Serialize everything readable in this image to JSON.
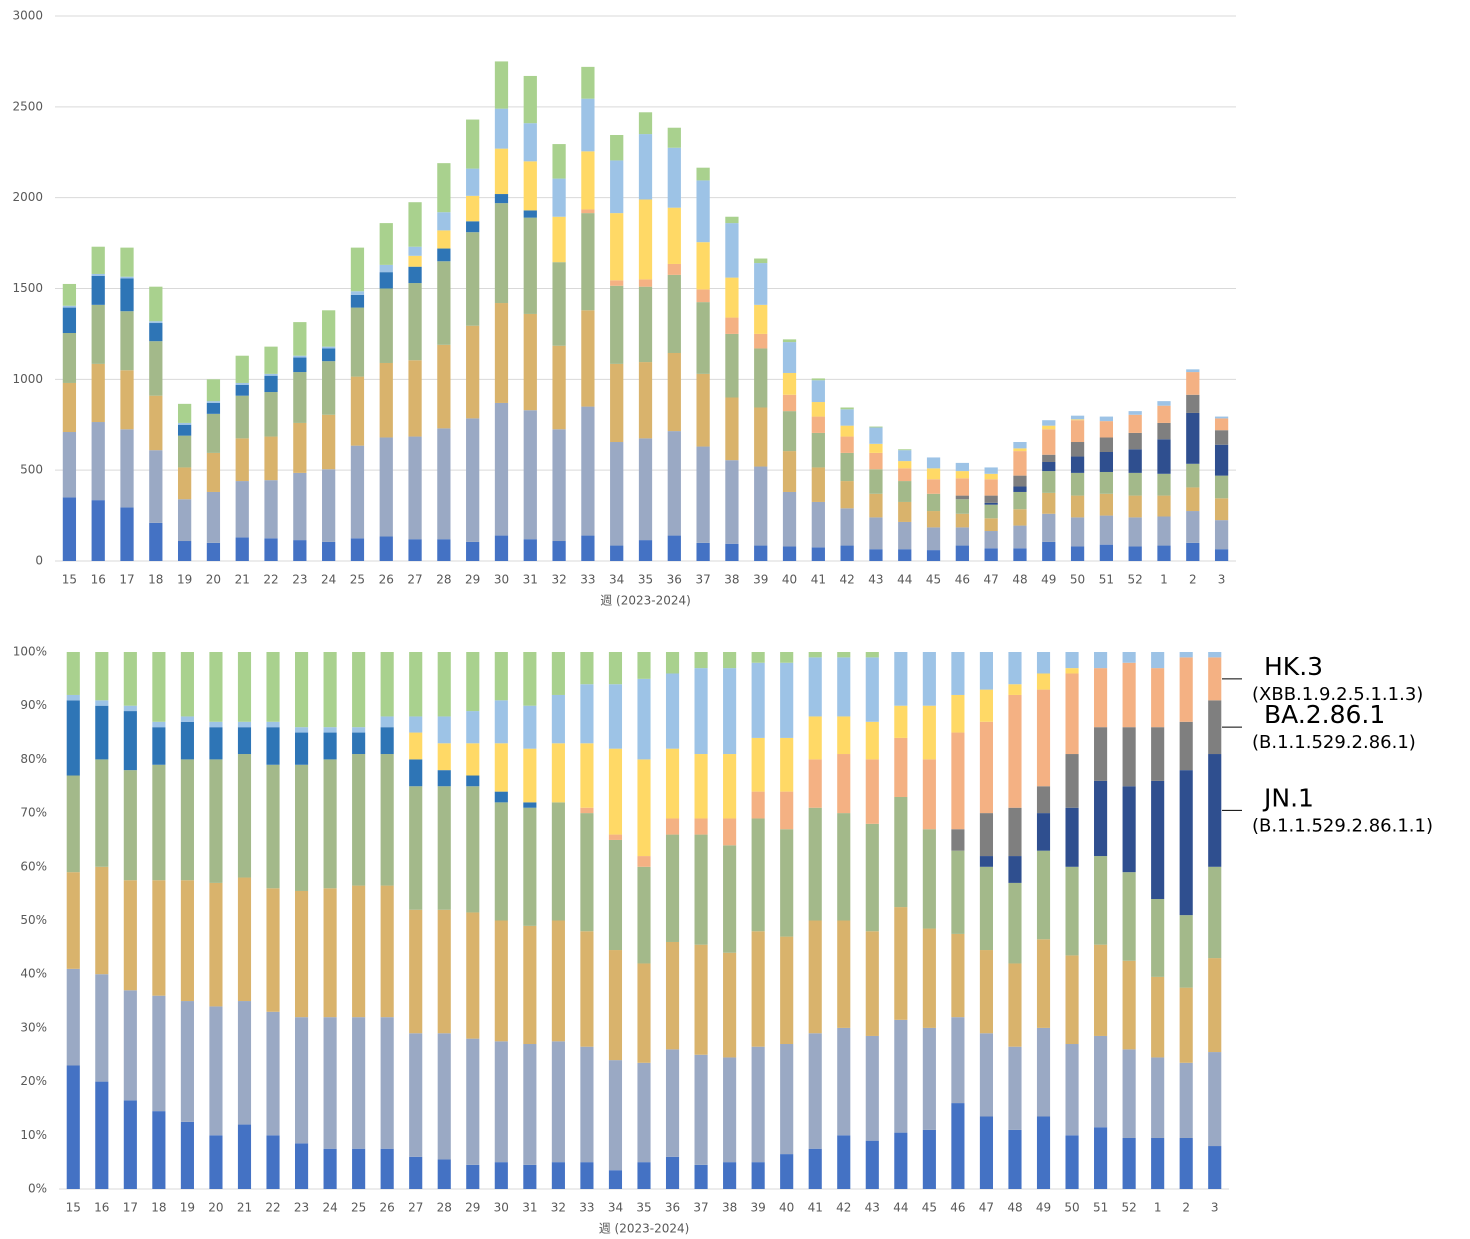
{
  "chart_data": [
    {
      "type": "stacked_bar",
      "x_label": "週 (2023-2024)",
      "grid": true,
      "categories": [
        "15",
        "16",
        "17",
        "18",
        "19",
        "20",
        "21",
        "22",
        "23",
        "24",
        "25",
        "26",
        "27",
        "28",
        "29",
        "30",
        "31",
        "32",
        "33",
        "34",
        "35",
        "36",
        "37",
        "38",
        "39",
        "40",
        "41",
        "42",
        "43",
        "44",
        "45",
        "46",
        "47",
        "48",
        "49",
        "50",
        "51",
        "52",
        "1",
        "2",
        "3"
      ],
      "ylim": [
        0,
        3000
      ],
      "yticks": [
        0,
        500,
        1000,
        1500,
        2000,
        2500,
        3000
      ],
      "series": [
        {
          "color": "#4472c4",
          "values": [
            350,
            335,
            295,
            210,
            110,
            100,
            130,
            125,
            115,
            105,
            125,
            135,
            120,
            120,
            105,
            140,
            120,
            110,
            140,
            85,
            115,
            140,
            100,
            95,
            85,
            80,
            75,
            85,
            65,
            65,
            60,
            85,
            70,
            70,
            105,
            80,
            90,
            80,
            85,
            100,
            65
          ]
        },
        {
          "color": "#9aa9c4",
          "values": [
            360,
            430,
            430,
            400,
            230,
            280,
            310,
            320,
            370,
            400,
            510,
            545,
            565,
            610,
            680,
            730,
            710,
            615,
            710,
            570,
            560,
            575,
            530,
            460,
            435,
            300,
            250,
            205,
            175,
            150,
            125,
            100,
            95,
            125,
            155,
            160,
            160,
            160,
            160,
            175,
            160
          ]
        },
        {
          "color": "#d9b36c",
          "values": [
            270,
            320,
            325,
            300,
            175,
            215,
            235,
            240,
            275,
            300,
            380,
            410,
            420,
            460,
            510,
            550,
            530,
            460,
            530,
            430,
            420,
            430,
            400,
            345,
            325,
            225,
            190,
            150,
            130,
            110,
            90,
            75,
            70,
            90,
            115,
            120,
            120,
            120,
            115,
            130,
            120
          ]
        },
        {
          "color": "#a3b98a",
          "values": [
            275,
            325,
            325,
            300,
            175,
            215,
            235,
            245,
            280,
            295,
            380,
            410,
            425,
            460,
            515,
            550,
            530,
            460,
            535,
            430,
            415,
            430,
            395,
            350,
            325,
            220,
            190,
            155,
            135,
            115,
            95,
            80,
            75,
            95,
            120,
            125,
            120,
            125,
            120,
            130,
            125
          ]
        },
        {
          "color": "#2e75b6",
          "values": [
            140,
            160,
            180,
            100,
            60,
            60,
            60,
            90,
            80,
            70,
            70,
            90,
            90,
            70,
            60,
            50,
            40,
            0,
            0,
            0,
            0,
            0,
            0,
            0,
            0,
            0,
            0,
            0,
            0,
            0,
            0,
            0,
            0,
            0,
            0,
            0,
            0,
            0,
            0,
            0,
            0
          ]
        },
        {
          "color": "#2f4f8f",
          "values": [
            0,
            0,
            0,
            0,
            0,
            0,
            0,
            0,
            0,
            0,
            0,
            0,
            0,
            0,
            0,
            0,
            0,
            0,
            0,
            0,
            0,
            0,
            0,
            0,
            0,
            0,
            0,
            0,
            0,
            0,
            0,
            0,
            10,
            30,
            50,
            90,
            110,
            130,
            190,
            280,
            170
          ]
        },
        {
          "color": "#7f7f7f",
          "values": [
            0,
            0,
            0,
            0,
            0,
            0,
            0,
            0,
            0,
            0,
            0,
            0,
            0,
            0,
            0,
            0,
            0,
            0,
            0,
            0,
            0,
            0,
            0,
            0,
            0,
            0,
            0,
            0,
            0,
            0,
            0,
            20,
            40,
            60,
            40,
            80,
            80,
            90,
            90,
            100,
            80
          ]
        },
        {
          "color": "#f4b183",
          "values": [
            0,
            0,
            0,
            0,
            0,
            0,
            0,
            0,
            0,
            0,
            0,
            0,
            0,
            0,
            0,
            0,
            0,
            0,
            20,
            30,
            40,
            60,
            70,
            90,
            80,
            90,
            90,
            90,
            90,
            70,
            80,
            95,
            90,
            135,
            140,
            120,
            90,
            100,
            95,
            125,
            65
          ]
        },
        {
          "color": "#ffd966",
          "values": [
            0,
            0,
            0,
            0,
            0,
            0,
            0,
            0,
            0,
            0,
            0,
            0,
            60,
            100,
            140,
            250,
            270,
            250,
            320,
            370,
            440,
            310,
            260,
            220,
            160,
            120,
            80,
            60,
            50,
            40,
            60,
            40,
            30,
            15,
            20,
            5,
            0,
            0,
            0,
            0,
            0
          ]
        },
        {
          "color": "#9dc3e6",
          "values": [
            10,
            10,
            10,
            10,
            10,
            10,
            10,
            10,
            10,
            10,
            20,
            40,
            50,
            100,
            150,
            220,
            210,
            210,
            290,
            290,
            360,
            330,
            340,
            300,
            230,
            170,
            120,
            90,
            90,
            60,
            60,
            45,
            35,
            35,
            30,
            20,
            25,
            20,
            25,
            15,
            10
          ]
        },
        {
          "color": "#a9d18e",
          "values": [
            120,
            150,
            160,
            190,
            105,
            120,
            150,
            150,
            185,
            200,
            240,
            230,
            245,
            270,
            270,
            260,
            260,
            190,
            175,
            140,
            120,
            110,
            70,
            35,
            25,
            15,
            10,
            10,
            5,
            5,
            0,
            0,
            0,
            0,
            0,
            0,
            0,
            0,
            0,
            0,
            0
          ]
        }
      ]
    },
    {
      "type": "stacked_bar",
      "x_label": "週 (2023-2024)",
      "grid": false,
      "categories": [
        "15",
        "16",
        "17",
        "18",
        "19",
        "20",
        "21",
        "22",
        "23",
        "24",
        "25",
        "26",
        "27",
        "28",
        "29",
        "30",
        "31",
        "32",
        "33",
        "34",
        "35",
        "36",
        "37",
        "38",
        "39",
        "40",
        "41",
        "42",
        "43",
        "44",
        "45",
        "46",
        "47",
        "48",
        "49",
        "50",
        "51",
        "52",
        "1",
        "2",
        "3"
      ],
      "ylim": [
        0,
        100
      ],
      "yticks": [
        {
          "value": 0,
          "label": "0%"
        },
        {
          "value": 10,
          "label": "10%"
        },
        {
          "value": 20,
          "label": "20%"
        },
        {
          "value": 30,
          "label": "30%"
        },
        {
          "value": 40,
          "label": "40%"
        },
        {
          "value": 50,
          "label": "50%"
        },
        {
          "value": 60,
          "label": "60%"
        },
        {
          "value": 70,
          "label": "70%"
        },
        {
          "value": 80,
          "label": "80%"
        },
        {
          "value": 90,
          "label": "90%"
        },
        {
          "value": 100,
          "label": "100%"
        }
      ],
      "series": [
        {
          "color": "#4472c4",
          "values": [
            23,
            20,
            16.5,
            14.5,
            12.5,
            10,
            12,
            10,
            8.5,
            7.5,
            7.5,
            7.5,
            6,
            5.5,
            4.5,
            5,
            4.5,
            5,
            5,
            3.5,
            5,
            6,
            4.5,
            5,
            5,
            6.5,
            7.5,
            10,
            9,
            10.5,
            11,
            16,
            13.5,
            11,
            13.5,
            10,
            11.5,
            9.5,
            9.5,
            9.5,
            8
          ]
        },
        {
          "color": "#9aa9c4",
          "values": [
            18,
            20,
            20.5,
            21.5,
            22.5,
            24,
            23,
            23,
            23.5,
            24.5,
            24.5,
            24.5,
            23,
            23.5,
            23.5,
            22.5,
            22.5,
            22.5,
            21.5,
            20.5,
            18.5,
            20,
            20.5,
            19.5,
            21.5,
            20.5,
            21.5,
            20,
            19.5,
            21,
            19,
            16,
            15.5,
            15.5,
            16.5,
            17,
            17,
            16.5,
            15,
            14,
            17.5
          ]
        },
        {
          "color": "#d9b36c",
          "values": [
            18,
            20,
            20.5,
            21.5,
            22.5,
            23,
            23,
            23,
            23.5,
            24,
            24.5,
            24.5,
            23,
            23,
            23.5,
            22.5,
            22,
            22.5,
            21.5,
            20.5,
            18.5,
            20,
            20.5,
            19.5,
            21.5,
            20,
            21,
            20,
            19.5,
            21,
            18.5,
            15.5,
            15.5,
            15.5,
            16.5,
            16.5,
            17,
            16.5,
            15,
            14,
            17.5
          ]
        },
        {
          "color": "#a3b98a",
          "values": [
            18,
            20,
            20.5,
            21.5,
            22.5,
            23,
            23,
            23,
            23.5,
            24,
            24.5,
            24.5,
            23,
            23,
            23.5,
            22,
            22,
            22,
            22,
            20.5,
            18,
            20,
            20.5,
            20,
            21,
            20,
            21,
            20,
            20,
            20.5,
            18.5,
            15.5,
            15.5,
            15,
            16.5,
            16.5,
            16.5,
            16.5,
            14.5,
            13.5,
            17
          ]
        },
        {
          "color": "#2e75b6",
          "values": [
            14,
            10,
            11,
            7,
            7,
            6,
            5,
            7,
            6,
            5,
            4,
            5,
            5,
            3,
            2,
            2,
            1,
            0,
            0,
            0,
            0,
            0,
            0,
            0,
            0,
            0,
            0,
            0,
            0,
            0,
            0,
            0,
            0,
            0,
            0,
            0,
            0,
            0,
            0,
            0,
            0
          ]
        },
        {
          "name": "JN.1",
          "detail": "(B.1.1.529.2.86.1.1)",
          "color": "#2f4f8f",
          "values": [
            0,
            0,
            0,
            0,
            0,
            0,
            0,
            0,
            0,
            0,
            0,
            0,
            0,
            0,
            0,
            0,
            0,
            0,
            0,
            0,
            0,
            0,
            0,
            0,
            0,
            0,
            0,
            0,
            0,
            0,
            0,
            0,
            2,
            5,
            7,
            11,
            14,
            16,
            22,
            27,
            21
          ]
        },
        {
          "name": "BA.2.86.1",
          "detail": "(B.1.1.529.2.86.1)",
          "color": "#7f7f7f",
          "values": [
            0,
            0,
            0,
            0,
            0,
            0,
            0,
            0,
            0,
            0,
            0,
            0,
            0,
            0,
            0,
            0,
            0,
            0,
            0,
            0,
            0,
            0,
            0,
            0,
            0,
            0,
            0,
            0,
            0,
            0,
            0,
            4,
            8,
            9,
            5,
            10,
            10,
            11,
            10,
            9,
            10
          ]
        },
        {
          "name": "HK.3",
          "detail": "(XBB.1.9.2.5.1.1.3)",
          "color": "#f4b183",
          "values": [
            0,
            0,
            0,
            0,
            0,
            0,
            0,
            0,
            0,
            0,
            0,
            0,
            0,
            0,
            0,
            0,
            0,
            0,
            1,
            1,
            2,
            3,
            3,
            5,
            5,
            7,
            9,
            11,
            12,
            11,
            13,
            18,
            17,
            21,
            18,
            15,
            11,
            12,
            11,
            12,
            8
          ]
        },
        {
          "color": "#ffd966",
          "values": [
            0,
            0,
            0,
            0,
            0,
            0,
            0,
            0,
            0,
            0,
            0,
            0,
            5,
            5,
            6,
            9,
            10,
            11,
            12,
            16,
            18,
            13,
            12,
            12,
            10,
            10,
            8,
            7,
            7,
            6,
            10,
            7,
            6,
            2,
            3,
            1,
            0,
            0,
            0,
            0,
            0
          ]
        },
        {
          "color": "#9dc3e6",
          "values": [
            1,
            1,
            1,
            1,
            1,
            1,
            1,
            1,
            1,
            1,
            1,
            2,
            3,
            5,
            6,
            8,
            8,
            9,
            11,
            12,
            15,
            14,
            16,
            16,
            14,
            14,
            11,
            11,
            12,
            10,
            10,
            8,
            7,
            6,
            4,
            3,
            3,
            2,
            3,
            1,
            1
          ]
        },
        {
          "color": "#a9d18e",
          "values": [
            8,
            9,
            10,
            13,
            12,
            13,
            13,
            13,
            14,
            14,
            14,
            12,
            12,
            12,
            11,
            9,
            10,
            8,
            6,
            6,
            5,
            4,
            3,
            3,
            2,
            2,
            1,
            1,
            1,
            0,
            0,
            0,
            0,
            0,
            0,
            0,
            0,
            0,
            0,
            0,
            0
          ]
        }
      ]
    }
  ]
}
